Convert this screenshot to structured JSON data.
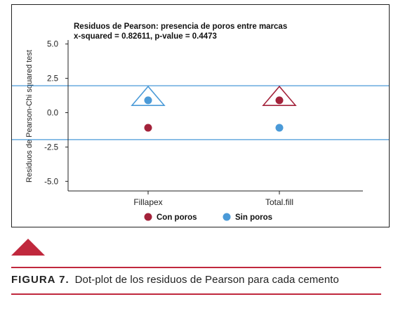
{
  "chart_data": {
    "type": "scatter",
    "title": "Residuos de Pearson:  presencia de poros entre marcas",
    "subtitle": "x-squared = 0.82611, p-value = 0.4473",
    "xlabel": "",
    "ylabel": "Residuos de Pearson-Chi squared test",
    "categories": [
      "Fillapex",
      "Total.fill"
    ],
    "ylim": [
      -5.7,
      5.7
    ],
    "yticks": [
      5.0,
      2.5,
      0.0,
      -2.5,
      -5.0
    ],
    "ytick_labels": [
      "5.0",
      "2.5",
      "0.0",
      "-2.5",
      "-5.0"
    ],
    "reference_lines": [
      1.96,
      -1.96
    ],
    "series": [
      {
        "name": "Con poros",
        "values": [
          -1.1,
          0.9
        ],
        "color": "#a3223a"
      },
      {
        "name": "Sin poros",
        "values": [
          0.9,
          -1.1
        ],
        "color": "#4a9ad8"
      }
    ],
    "annotations": [
      {
        "type": "triangle",
        "category": "Fillapex",
        "y": 0.9,
        "color": "#4a9ad8"
      },
      {
        "type": "triangle",
        "category": "Total.fill",
        "y": 0.9,
        "color": "#a3223a"
      }
    ],
    "reference_line_color": "#4a9ad8",
    "grid": false,
    "legend_placement": "bottom-center"
  },
  "caption": {
    "label": "FIGURA 7.",
    "text": "Dot-plot de los residuos de Pearson para cada cemento"
  },
  "colors": {
    "accent": "#c0283d"
  }
}
